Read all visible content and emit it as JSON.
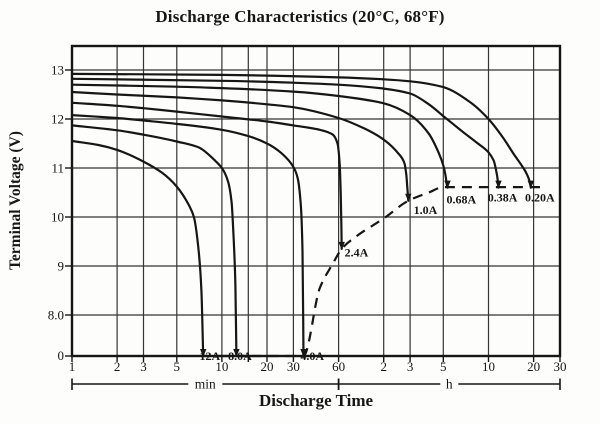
{
  "title": "Discharge Characteristics (20°C, 68°F)",
  "chart_data": {
    "type": "line",
    "title": "Discharge Characteristics (20°C, 68°F)",
    "background": "#fdfdfb",
    "ink_color": "#161616",
    "grid_color": "#343434",
    "x_axis": {
      "label": "Discharge Time",
      "scale": "log",
      "t_min_minutes": 1,
      "t_max_minutes": 1800,
      "ticks": [
        {
          "t": 1,
          "label": "1"
        },
        {
          "t": 2,
          "label": "2"
        },
        {
          "t": 3,
          "label": "3"
        },
        {
          "t": 5,
          "label": "5"
        },
        {
          "t": 10,
          "label": "10"
        },
        {
          "t": 15,
          "label": ""
        },
        {
          "t": 20,
          "label": "20"
        },
        {
          "t": 30,
          "label": "30"
        },
        {
          "t": 60,
          "label": "60"
        },
        {
          "t": 120,
          "label": "2"
        },
        {
          "t": 180,
          "label": "3"
        },
        {
          "t": 300,
          "label": "5"
        },
        {
          "t": 600,
          "label": "10"
        },
        {
          "t": 1200,
          "label": "20"
        },
        {
          "t": 1800,
          "label": "30"
        }
      ],
      "unit_brackets": [
        {
          "label": "min",
          "from": 1,
          "to": 60
        },
        {
          "label": "h",
          "from": 60,
          "to": 1800
        }
      ]
    },
    "y_axis": {
      "label": "Terminal Voltage (V)",
      "unit": "V",
      "ticks": [
        {
          "v": 13,
          "label": "13"
        },
        {
          "v": 12,
          "label": "12"
        },
        {
          "v": 11,
          "label": "11"
        },
        {
          "v": 10,
          "label": "10"
        },
        {
          "v": 9,
          "label": "9"
        },
        {
          "v": 8,
          "label": "8.0"
        },
        {
          "v": 0,
          "label": "0"
        }
      ]
    },
    "series": [
      {
        "name": "12A",
        "points": [
          [
            1,
            11.55
          ],
          [
            1.5,
            11.47
          ],
          [
            2,
            11.37
          ],
          [
            3,
            11.13
          ],
          [
            4,
            10.9
          ],
          [
            5,
            10.62
          ],
          [
            6,
            10.25
          ],
          [
            6.5,
            10.0
          ],
          [
            7,
            9.3
          ],
          [
            7.3,
            8.5
          ],
          [
            7.5,
            7.95
          ]
        ]
      },
      {
        "name": "8.0A",
        "points": [
          [
            1,
            11.87
          ],
          [
            2,
            11.77
          ],
          [
            3,
            11.68
          ],
          [
            5,
            11.54
          ],
          [
            7,
            11.42
          ],
          [
            9,
            11.15
          ],
          [
            10,
            11.0
          ],
          [
            11,
            10.72
          ],
          [
            11.6,
            10.3
          ],
          [
            12,
            9.5
          ],
          [
            12.3,
            8.6
          ],
          [
            12.5,
            7.95
          ]
        ]
      },
      {
        "name": "4.0A",
        "points": [
          [
            1,
            12.08
          ],
          [
            2,
            12.02
          ],
          [
            3,
            11.97
          ],
          [
            5,
            11.9
          ],
          [
            10,
            11.78
          ],
          [
            15,
            11.65
          ],
          [
            20,
            11.5
          ],
          [
            25,
            11.3
          ],
          [
            30,
            11.02
          ],
          [
            32,
            10.8
          ],
          [
            33.5,
            10.3
          ],
          [
            34.5,
            9.3
          ],
          [
            35,
            7.95
          ]
        ]
      },
      {
        "name": "2.4A",
        "points": [
          [
            1,
            12.33
          ],
          [
            2,
            12.27
          ],
          [
            3,
            12.22
          ],
          [
            5,
            12.15
          ],
          [
            10,
            12.05
          ],
          [
            20,
            11.95
          ],
          [
            30,
            11.87
          ],
          [
            45,
            11.78
          ],
          [
            55,
            11.68
          ],
          [
            59,
            11.5
          ],
          [
            61,
            11.1
          ],
          [
            62,
            10.5
          ],
          [
            62.7,
            9.8
          ],
          [
            63,
            9.35
          ]
        ]
      },
      {
        "name": "1.0A",
        "points": [
          [
            1,
            12.55
          ],
          [
            2,
            12.5
          ],
          [
            5,
            12.44
          ],
          [
            10,
            12.38
          ],
          [
            20,
            12.3
          ],
          [
            30,
            12.24
          ],
          [
            60,
            12.02
          ],
          [
            90,
            11.8
          ],
          [
            120,
            11.58
          ],
          [
            150,
            11.3
          ],
          [
            165,
            11.1
          ],
          [
            170,
            10.85
          ],
          [
            173,
            10.55
          ],
          [
            175,
            10.33
          ]
        ]
      },
      {
        "name": "0.68A",
        "points": [
          [
            1,
            12.7
          ],
          [
            5,
            12.66
          ],
          [
            10,
            12.63
          ],
          [
            30,
            12.56
          ],
          [
            60,
            12.47
          ],
          [
            120,
            12.32
          ],
          [
            180,
            12.08
          ],
          [
            240,
            11.7
          ],
          [
            280,
            11.3
          ],
          [
            300,
            11.05
          ],
          [
            310,
            10.85
          ],
          [
            317,
            10.65
          ],
          [
            320,
            10.6
          ]
        ]
      },
      {
        "name": "0.38A",
        "points": [
          [
            1,
            12.82
          ],
          [
            10,
            12.78
          ],
          [
            30,
            12.74
          ],
          [
            60,
            12.7
          ],
          [
            120,
            12.62
          ],
          [
            180,
            12.52
          ],
          [
            240,
            12.3
          ],
          [
            300,
            12.06
          ],
          [
            400,
            11.75
          ],
          [
            500,
            11.52
          ],
          [
            600,
            11.32
          ],
          [
            650,
            11.15
          ],
          [
            680,
            10.9
          ],
          [
            695,
            10.7
          ],
          [
            700,
            10.6
          ]
        ]
      },
      {
        "name": "0.20A",
        "points": [
          [
            1,
            12.92
          ],
          [
            10,
            12.9
          ],
          [
            60,
            12.85
          ],
          [
            120,
            12.81
          ],
          [
            180,
            12.77
          ],
          [
            300,
            12.65
          ],
          [
            450,
            12.35
          ],
          [
            600,
            12.0
          ],
          [
            750,
            11.62
          ],
          [
            900,
            11.25
          ],
          [
            1000,
            11.05
          ],
          [
            1080,
            10.88
          ],
          [
            1130,
            10.72
          ],
          [
            1150,
            10.6
          ]
        ]
      }
    ],
    "cutoff_line": {
      "style": "dashed",
      "points": [
        [
          7.2,
          7.92
        ],
        [
          20,
          7.92
        ],
        [
          35,
          7.92
        ],
        [
          45,
          8.55
        ],
        [
          55,
          9.05
        ],
        [
          63,
          9.35
        ],
        [
          80,
          9.62
        ],
        [
          120,
          9.97
        ],
        [
          175,
          10.33
        ],
        [
          240,
          10.5
        ],
        [
          300,
          10.61
        ],
        [
          600,
          10.61
        ],
        [
          1150,
          10.61
        ],
        [
          1400,
          10.61
        ]
      ]
    },
    "series_labels": [
      {
        "text": "12A",
        "t": 8.3,
        "v": 7.72
      },
      {
        "text": "8.0A",
        "t": 13.2,
        "v": 7.72
      },
      {
        "text": "4.0A",
        "t": 40,
        "v": 7.72
      },
      {
        "text": "2.4A",
        "t": 79,
        "v": 9.28
      },
      {
        "text": "1.0A",
        "t": 228,
        "v": 10.14
      },
      {
        "text": "0.68A",
        "t": 395,
        "v": 10.36
      },
      {
        "text": "0.38A",
        "t": 745,
        "v": 10.4
      },
      {
        "text": "0.20A",
        "t": 1320,
        "v": 10.4
      }
    ]
  }
}
